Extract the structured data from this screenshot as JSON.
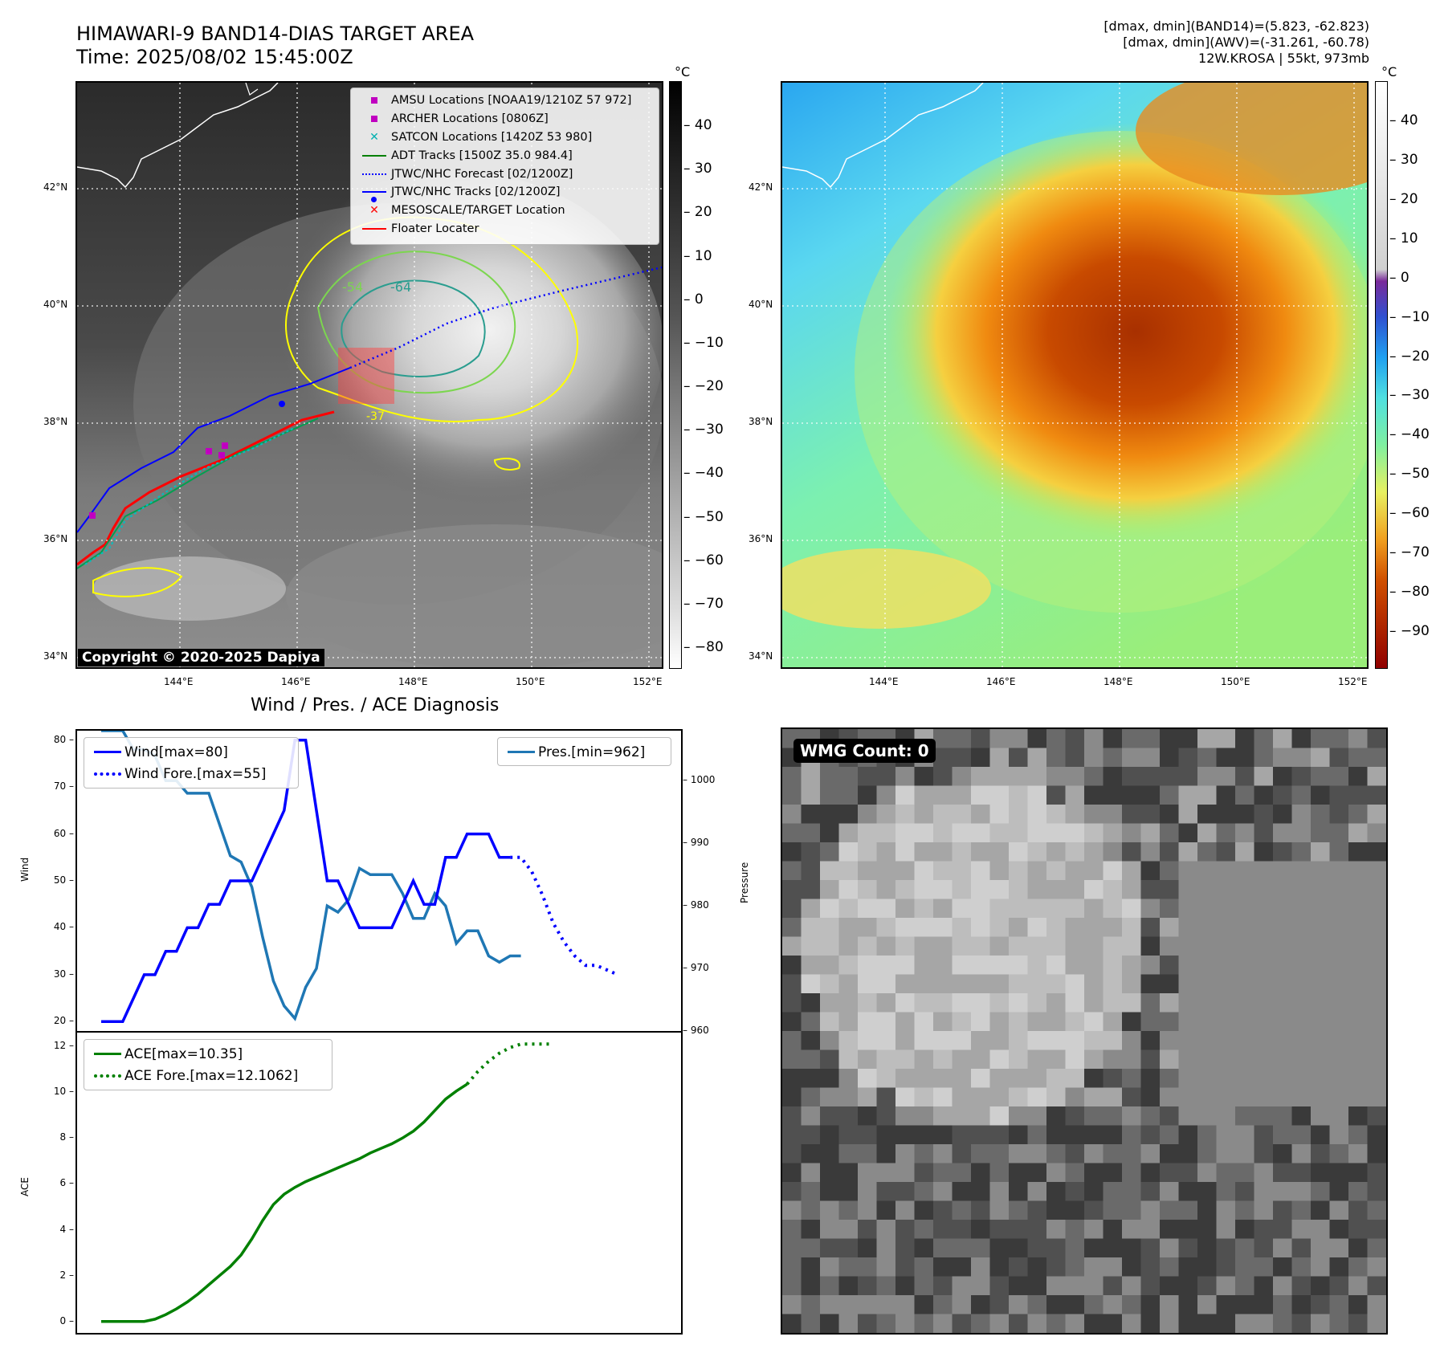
{
  "header": {
    "title_line1": "HIMAWARI-9 BAND14-DIAS TARGET AREA",
    "title_line2": "Time: 2025/08/02 15:45:00Z",
    "info_line1": "[dmax, dmin](BAND14)=(5.823, -62.823)",
    "info_line2": "[dmax, dmin](AWV)=(-31.261, -60.78)",
    "info_line3": "12W.KROSA | 55kt, 973mb"
  },
  "maps": {
    "lat_labels": [
      "42°N",
      "40°N",
      "38°N",
      "36°N",
      "34°N"
    ],
    "lon_labels": [
      "144°E",
      "146°E",
      "148°E",
      "150°E",
      "152°E"
    ],
    "copyright": "Copyright © 2020-2025 Dapiya",
    "contour_labels": [
      "-64",
      "-54",
      "-37"
    ],
    "colorbar_unit": "°C",
    "left_colorbar_ticks": [
      "40",
      "30",
      "20",
      "10",
      "0",
      "−10",
      "−20",
      "−30",
      "−40",
      "−50",
      "−60",
      "−70",
      "−80"
    ],
    "right_colorbar_ticks": [
      "40",
      "30",
      "20",
      "10",
      "0",
      "−10",
      "−20",
      "−30",
      "−40",
      "−50",
      "−60",
      "−70",
      "−80",
      "−90"
    ],
    "legend": [
      {
        "label": "AMSU Locations [NOAA19/1210Z 57 972]",
        "color": "#c000c0",
        "marker": "square"
      },
      {
        "label": "ARCHER Locations [0806Z]",
        "color": "#c000c0",
        "marker": "square"
      },
      {
        "label": "SATCON Locations [1420Z 53 980]",
        "color": "#00b0b0",
        "marker": "x"
      },
      {
        "label": "ADT Tracks [1500Z 35.0 984.4]",
        "color": "#008000",
        "marker": "line"
      },
      {
        "label": "JTWC/NHC Forecast [02/1200Z]",
        "color": "#0000ff",
        "marker": "dotted"
      },
      {
        "label": "JTWC/NHC Tracks [02/1200Z]",
        "color": "#0000ff",
        "marker": "line-dot"
      },
      {
        "label": "MESOSCALE/TARGET Location",
        "color": "#ff0000",
        "marker": "x"
      },
      {
        "label": "Floater Locater",
        "color": "#ff0000",
        "marker": "line"
      }
    ]
  },
  "diagnosis": {
    "title": "Wind / Pres. / ACE Diagnosis",
    "wind_ylabel": "Wind",
    "pres_ylabel": "Pressure",
    "ace_ylabel": "ACE",
    "wind_ticks": [
      "80",
      "70",
      "60",
      "50",
      "40",
      "30",
      "20"
    ],
    "pres_ticks": [
      "1000",
      "990",
      "980",
      "970",
      "960"
    ],
    "ace_ticks": [
      "12",
      "10",
      "8",
      "6",
      "4",
      "2",
      "0"
    ]
  },
  "wmg": {
    "count_label": "WMG Count: 0"
  },
  "chart_data": [
    {
      "type": "line",
      "title": "Wind / Pres. / ACE Diagnosis",
      "ylabel": "Wind",
      "ylim": [
        18,
        82
      ],
      "series": [
        {
          "name": "Wind[max=80]",
          "color": "#0000ff",
          "style": "solid",
          "values": [
            20,
            20,
            20,
            25,
            30,
            30,
            35,
            35,
            40,
            40,
            45,
            45,
            50,
            50,
            50,
            55,
            60,
            65,
            80,
            80,
            65,
            50,
            50,
            45,
            40,
            40,
            40,
            40,
            45,
            50,
            45,
            45,
            55,
            55,
            60,
            60,
            60,
            55,
            55
          ]
        },
        {
          "name": "Wind Fore.[max=55]",
          "color": "#0000ff",
          "style": "dotted",
          "values": [
            55,
            55,
            52,
            47,
            41,
            37,
            34,
            32,
            32,
            31,
            30
          ]
        }
      ]
    },
    {
      "type": "line",
      "ylabel": "Pressure",
      "ylim": [
        960,
        1008
      ],
      "series": [
        {
          "name": "Pres.[min=962]",
          "color": "#1f77b4",
          "style": "solid",
          "values": [
            1008,
            1008,
            1008,
            1005,
            1005,
            1004,
            1000,
            1000,
            998,
            998,
            998,
            993,
            988,
            987,
            983,
            975,
            968,
            964,
            962,
            967,
            970,
            980,
            979,
            981,
            986,
            985,
            985,
            985,
            982,
            978,
            978,
            982,
            980,
            974,
            976,
            976,
            972,
            971,
            972,
            972
          ]
        }
      ]
    },
    {
      "type": "line",
      "ylabel": "ACE",
      "ylim": [
        -0.5,
        12.6
      ],
      "series": [
        {
          "name": "ACE[max=10.35]",
          "color": "#008000",
          "style": "solid",
          "values": [
            0,
            0,
            0,
            0,
            0,
            0.1,
            0.3,
            0.55,
            0.85,
            1.2,
            1.6,
            2.0,
            2.4,
            2.9,
            3.6,
            4.4,
            5.1,
            5.55,
            5.85,
            6.1,
            6.3,
            6.5,
            6.7,
            6.9,
            7.1,
            7.35,
            7.55,
            7.75,
            8.0,
            8.3,
            8.7,
            9.2,
            9.7,
            10.05,
            10.35
          ]
        },
        {
          "name": "ACE Fore.[max=12.1062]",
          "color": "#008000",
          "style": "dotted",
          "values": [
            10.35,
            10.9,
            11.35,
            11.7,
            11.95,
            12.1,
            12.1,
            12.1,
            12.1
          ]
        }
      ]
    }
  ]
}
